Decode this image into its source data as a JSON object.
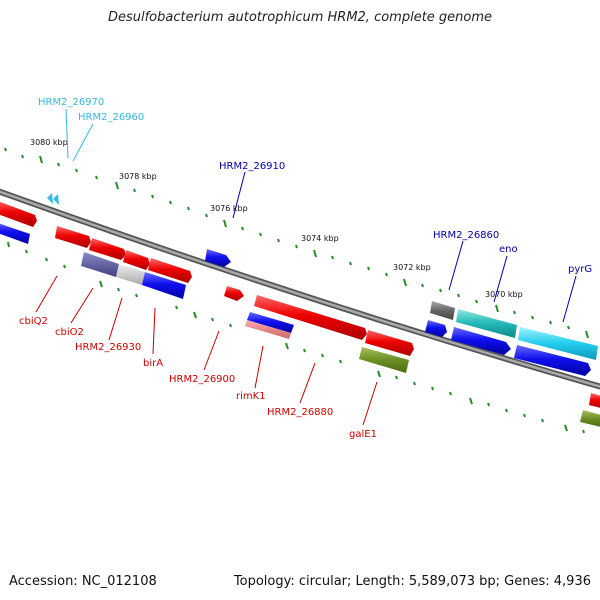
{
  "title": "Desulfobacterium autotrophicum HRM2, complete genome",
  "footer": {
    "accession": "Accession: NC_012108",
    "topology": "Topology: circular; Length: 5,589,073 bp; Genes: 4,936"
  },
  "scale_labels": [
    "3080 kbp",
    "3078 kbp",
    "3076 kbp",
    "3074 kbp",
    "3072 kbp",
    "3070 kbp"
  ],
  "gene_labels": {
    "hrm2_26970": "HRM2_26970",
    "hrm2_26960": "HRM2_26960",
    "hrm2_26910": "HRM2_26910",
    "hrm2_26860": "HRM2_26860",
    "eno": "eno",
    "pyrG": "pyrG",
    "cbiQ2": "cbiQ2",
    "cbiO2": "cbiO2",
    "hrm2_26930": "HRM2_26930",
    "birA": "birA",
    "hrm2_26900": "HRM2_26900",
    "rimK1": "rimK1",
    "hrm2_26880": "HRM2_26880",
    "galE1": "galE1"
  },
  "colors": {
    "forward_gene": "#dd0000",
    "reverse_gene": "#1010dd",
    "cyan_gene": "#22ccdd",
    "olive_gene": "#6b8e23",
    "backbone": "#888888",
    "tick": "#2a8a2a"
  }
}
